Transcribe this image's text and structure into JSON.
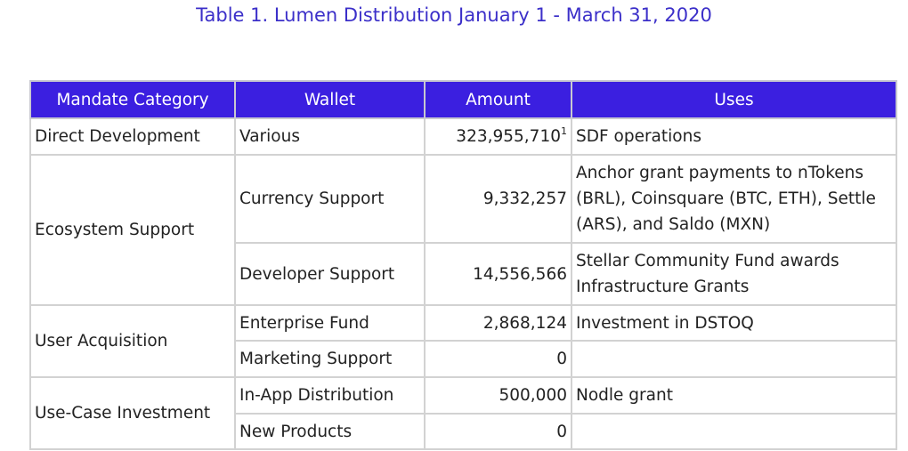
{
  "title": "Table 1. Lumen Distribution January 1 - March 31, 2020",
  "headers": [
    "Mandate Category",
    "Wallet",
    "Amount",
    "Uses"
  ],
  "colors": {
    "header_bg": "#3b1fe0",
    "title": "#3b2fc9"
  },
  "rows": {
    "direct": {
      "category": "Direct Development",
      "wallet": "Various",
      "amount": "323,955,710",
      "footnote": "1",
      "uses": "SDF operations"
    },
    "ecosystem": {
      "category": "Ecosystem Support",
      "currency": {
        "wallet": "Currency Support",
        "amount": "9,332,257",
        "uses": "Anchor grant payments to nTokens (BRL), Coinsquare (BTC, ETH), Settle (ARS), and Saldo (MXN)"
      },
      "developer": {
        "wallet": "Developer Support",
        "amount": "14,556,566",
        "uses": "Stellar Community Fund awards Infrastructure Grants"
      }
    },
    "user": {
      "category": "User Acquisition",
      "enterprise": {
        "wallet": "Enterprise Fund",
        "amount": "2,868,124",
        "uses": "Investment in DSTOQ"
      },
      "marketing": {
        "wallet": "Marketing Support",
        "amount": "0",
        "uses": ""
      }
    },
    "usecase": {
      "category": "Use-Case Investment",
      "inapp": {
        "wallet": "In-App Distribution",
        "amount": "500,000",
        "uses": "Nodle grant"
      },
      "newproducts": {
        "wallet": "New Products",
        "amount": "0",
        "uses": ""
      }
    }
  }
}
